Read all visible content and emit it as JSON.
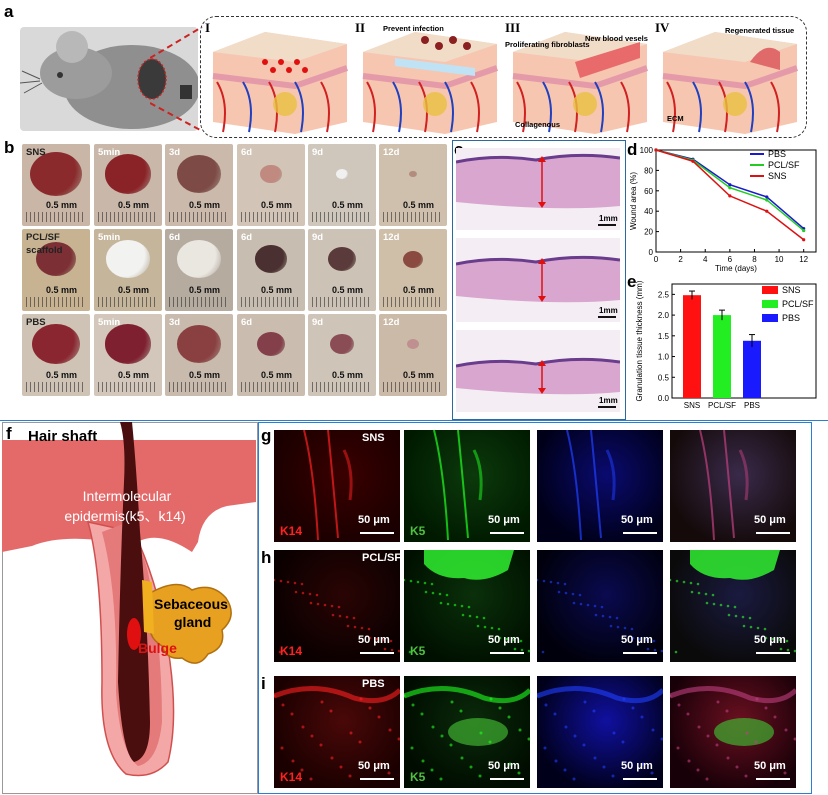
{
  "panels": {
    "a": {
      "label": "a",
      "stages": [
        {
          "numeral": "I",
          "text": ""
        },
        {
          "numeral": "II",
          "text": "Prevent infection"
        },
        {
          "numeral": "III",
          "text": "Proliferating fibroblasts",
          "text2": "New blood vesels",
          "text3": "Collagenous"
        },
        {
          "numeral": "IV",
          "text": "Regenerated tissue",
          "text2": "ECM"
        }
      ]
    },
    "b": {
      "label": "b",
      "rows": [
        {
          "group": "SNS",
          "group2": "",
          "times": [
            "SNS",
            "5min",
            "3d",
            "6d",
            "9d",
            "12d"
          ]
        },
        {
          "group": "PCL/SF",
          "group2": "scaffold",
          "times": [
            "",
            "5min",
            "6d",
            "6d",
            "9d",
            "12d"
          ]
        },
        {
          "group": "PBS",
          "group2": "",
          "times": [
            "PBS",
            "5min",
            "3d",
            "6d",
            "9d",
            "12d"
          ]
        }
      ],
      "scale_text": "0.5 mm"
    },
    "c": {
      "label": "c",
      "scale_text": "1mm"
    },
    "d": {
      "label": "d"
    },
    "e": {
      "label": "e"
    },
    "f": {
      "label": "f",
      "hair_shaft": "Hair shaft",
      "epidermis_line1": "Intermolecular",
      "epidermis_line2": "epidermis(k5、k14)",
      "gland_line1": "Sebaceous",
      "gland_line2": "gland",
      "bulge": "Bulge"
    },
    "g": {
      "label": "g",
      "group": "SNS"
    },
    "h": {
      "label": "h",
      "group": "PCL/SF"
    },
    "i": {
      "label": "i",
      "group": "PBS"
    },
    "micro": {
      "k14": "K14",
      "k5": "K5",
      "scale": "50 μm"
    }
  },
  "chart_data": [
    {
      "type": "line",
      "panel": "d",
      "x": [
        0,
        3,
        6,
        9,
        12
      ],
      "series": [
        {
          "name": "PBS",
          "color": "#1a1acc",
          "values": [
            100,
            91,
            66,
            54,
            23
          ]
        },
        {
          "name": "PCL/SF",
          "color": "#22cc22",
          "values": [
            100,
            90,
            63,
            51,
            21
          ]
        },
        {
          "name": "SNS",
          "color": "#dd1111",
          "values": [
            100,
            89,
            55,
            40,
            12
          ]
        }
      ],
      "xlabel": "Time (days)",
      "ylabel": "Wound area (%)",
      "xlim": [
        0,
        13
      ],
      "ylim": [
        0,
        100
      ],
      "xticks": [
        0,
        2,
        4,
        6,
        8,
        10,
        12
      ],
      "yticks": [
        0,
        20,
        40,
        60,
        80,
        100
      ],
      "legend": "top-right"
    },
    {
      "type": "bar",
      "panel": "e",
      "categories": [
        "SNS",
        "PCL/SF",
        "PBS"
      ],
      "values": [
        2.48,
        2.0,
        1.38
      ],
      "errors": [
        0.1,
        0.12,
        0.15
      ],
      "colors": [
        "#ff1111",
        "#22ee22",
        "#1a1aff"
      ],
      "ylabel": "Granulation tissue thickness (mm)",
      "ylim": [
        0,
        2.75
      ],
      "yticks": [
        0.0,
        0.5,
        1.0,
        1.5,
        2.0,
        2.5
      ],
      "legend": "top-right"
    }
  ]
}
